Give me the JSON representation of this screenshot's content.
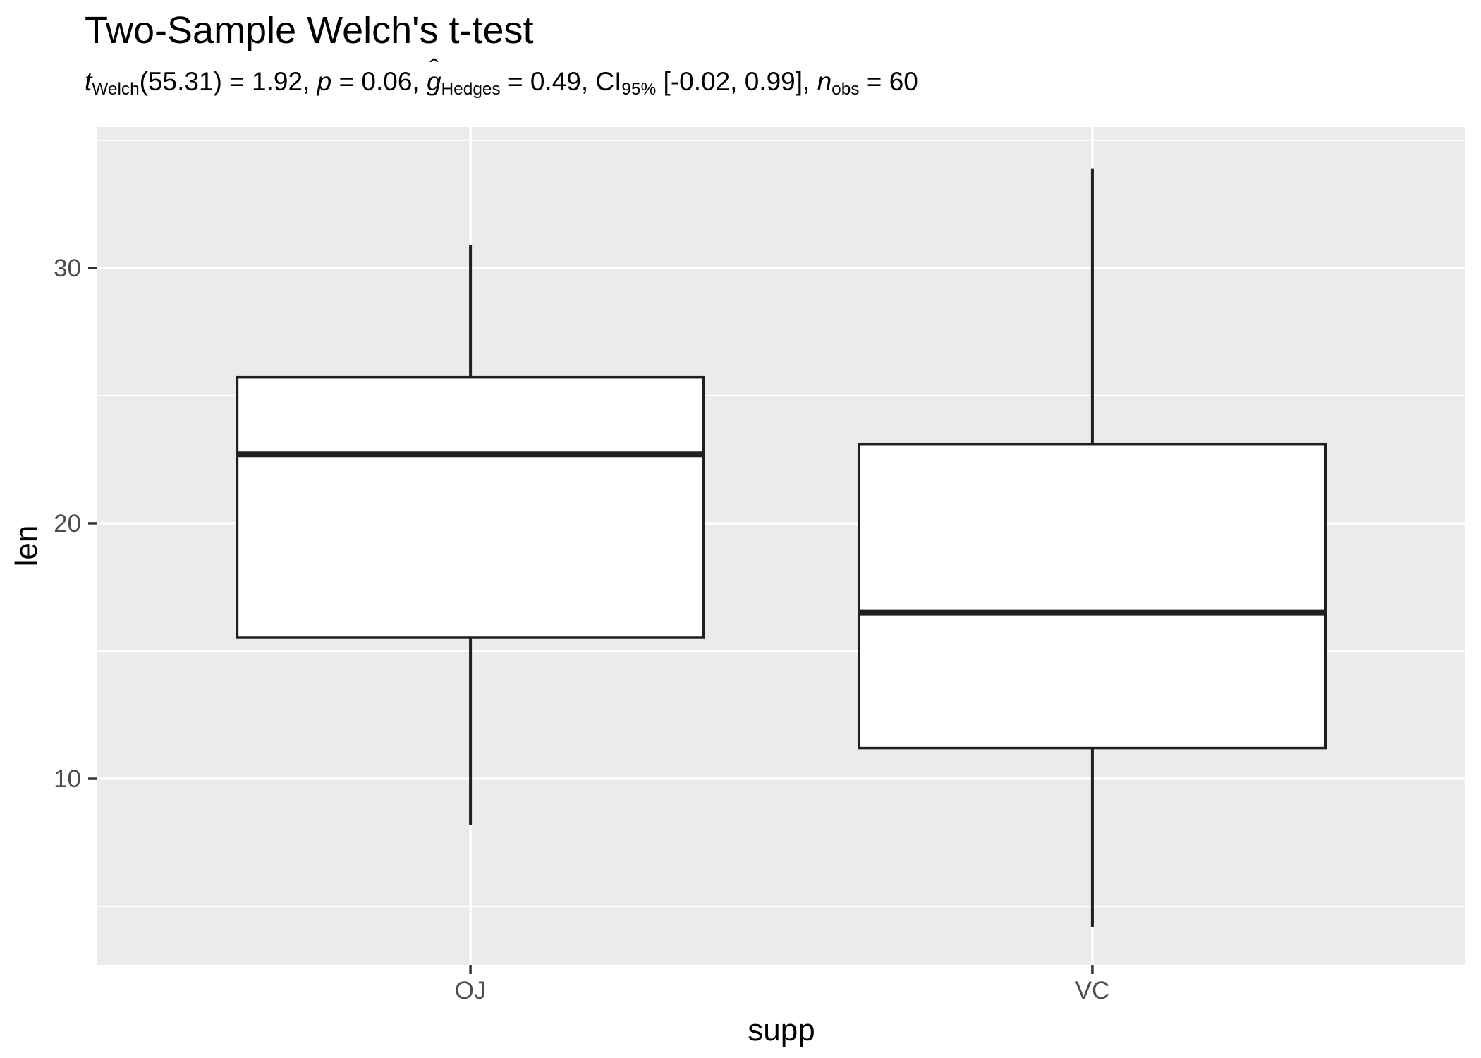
{
  "title": "Two-Sample Welch's t-test",
  "subtitle_plain": "t_Welch(55.31) = 1.92, p = 0.06, g-hat_Hedges = 0.49, CI_95% [-0.02, 0.99], n_obs = 60",
  "subtitle_tokens": [
    {
      "style": "italic",
      "text": "t"
    },
    {
      "style": "sub",
      "text": "Welch"
    },
    {
      "style": "normal",
      "text": "(55.31) = 1.92, "
    },
    {
      "style": "italic",
      "text": "p"
    },
    {
      "style": "normal",
      "text": " = 0.06, "
    },
    {
      "style": "ghat",
      "text": "g"
    },
    {
      "style": "sub",
      "text": "Hedges"
    },
    {
      "style": "normal",
      "text": " = 0.49, CI"
    },
    {
      "style": "sub",
      "text": "95%"
    },
    {
      "style": "normal",
      "text": " [-0.02, 0.99], "
    },
    {
      "style": "italic",
      "text": "n"
    },
    {
      "style": "sub",
      "text": "obs"
    },
    {
      "style": "normal",
      "text": " = 60"
    }
  ],
  "chart_data": {
    "type": "boxplot",
    "title": "Two-Sample Welch's t-test",
    "xlabel": "supp",
    "ylabel": "len",
    "categories": [
      "OJ",
      "VC"
    ],
    "series": [
      {
        "name": "OJ",
        "min": 8.2,
        "q1": 15.525,
        "median": 22.7,
        "q3": 25.725,
        "max": 30.9
      },
      {
        "name": "VC",
        "min": 4.2,
        "q1": 11.2,
        "median": 16.5,
        "q3": 23.1,
        "max": 33.9
      }
    ],
    "y_ticks": [
      10,
      20,
      30
    ],
    "y_minor_ticks": [
      5,
      15,
      25,
      35
    ],
    "ylim": [
      2.71,
      35.52
    ],
    "grid": true,
    "legend": "none",
    "colors": {
      "panel_bg": "#EBEBEB",
      "grid": "#FFFFFF",
      "box_stroke": "#1F1F1F",
      "box_fill": "#FFFFFF",
      "axis_text": "#4D4D4D",
      "tick": "#333333",
      "title_text": "#000000"
    }
  }
}
